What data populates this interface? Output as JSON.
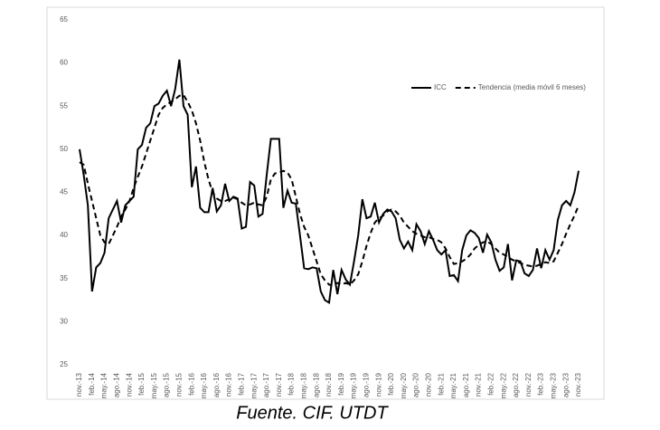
{
  "chart_data": {
    "type": "line",
    "caption": "Fuente. CIF. UTDT",
    "categories": [
      "nov.-13",
      null,
      null,
      "feb.-14",
      null,
      null,
      "may.-14",
      null,
      null,
      "ago.-14",
      null,
      null,
      "nov.-14",
      null,
      null,
      "feb.-15",
      null,
      null,
      "may.-15",
      null,
      null,
      "ago.-15",
      null,
      null,
      "nov.-15",
      null,
      null,
      "feb.-16",
      null,
      null,
      "may.-16",
      null,
      null,
      "ago.-16",
      null,
      null,
      "nov.-16",
      null,
      null,
      "feb.-17",
      null,
      null,
      "may.-17",
      null,
      null,
      "ago.-17",
      null,
      null,
      "nov.-17",
      null,
      null,
      "feb.-18",
      null,
      null,
      "may.-18",
      null,
      null,
      "ago.-18",
      null,
      null,
      "nov.-18",
      null,
      null,
      "feb.-19",
      null,
      null,
      "may.-19",
      null,
      null,
      "ago.-19",
      null,
      null,
      "nov.-19",
      null,
      null,
      "feb.-20",
      null,
      null,
      "may.-20",
      null,
      null,
      "ago.-20",
      null,
      null,
      "nov.-20",
      null,
      null,
      "feb.-21",
      null,
      null,
      "may.-21",
      null,
      null,
      "ago.-21",
      null,
      null,
      "nov.-21",
      null,
      null,
      "feb.-22",
      null,
      null,
      "may.-22",
      null,
      null,
      "ago.-22",
      null,
      null,
      "nov.-22",
      null,
      null,
      "feb.-23",
      null,
      null,
      "may.-23",
      null,
      null,
      "ago.-23",
      null,
      null,
      "nov.-23"
    ],
    "series": [
      {
        "name": "ICC",
        "color": "#000000",
        "dash": false,
        "values": [
          50,
          47,
          43.5,
          33.5,
          36.3,
          36.8,
          38,
          42,
          43,
          44,
          41.5,
          43.5,
          44,
          44.5,
          50,
          50.5,
          52.5,
          53,
          55,
          55.3,
          56.2,
          56.8,
          55,
          57,
          60.4,
          55,
          54,
          45.6,
          48,
          43.2,
          42.7,
          42.7,
          45.5,
          42.8,
          43.5,
          46,
          44,
          44.5,
          44.3,
          40.8,
          41,
          46.2,
          45.8,
          42.2,
          42.5,
          47,
          51.2,
          51.2,
          51.2,
          43.2,
          45.2,
          43.8,
          43.7,
          40,
          36.2,
          36.1,
          36.3,
          36.2,
          33.5,
          32.5,
          32.2,
          36,
          33.2,
          36,
          34.9,
          34.3,
          37,
          40,
          44.2,
          42,
          42.2,
          43.8,
          41.5,
          42.5,
          43,
          42.8,
          42,
          39.5,
          38.5,
          39.3,
          38.3,
          41.3,
          40.5,
          39,
          40.5,
          39.5,
          38.3,
          37.8,
          38.3,
          35.3,
          35.4,
          34.7,
          38.3,
          40,
          40.6,
          40.3,
          39.7,
          38,
          40.1,
          39.2,
          37.2,
          35.9,
          36.3,
          39,
          34.8,
          37.1,
          37,
          35.6,
          35.3,
          36,
          38.5,
          36.2,
          38.3,
          37.2,
          38.3,
          41.8,
          43.5,
          44,
          43.5,
          45,
          47.5
        ]
      },
      {
        "name": "Tendencia (media móvil 6 meses)",
        "color": "#000000",
        "dash": true,
        "values": [
          48.5,
          48.2,
          46,
          44,
          42,
          40,
          39.2,
          39,
          40,
          41,
          42.2,
          43,
          44,
          45.5,
          46.8,
          48,
          49.5,
          51,
          52.5,
          54,
          54.8,
          55.2,
          55.5,
          55.8,
          56.2,
          56.3,
          55.5,
          54.5,
          53,
          51,
          48.5,
          46.5,
          45,
          44.3,
          44,
          44,
          44.2,
          44.4,
          44.2,
          43.8,
          43.5,
          43.6,
          43.8,
          43.6,
          43.5,
          44.5,
          46.5,
          47.2,
          47.3,
          47.5,
          47.3,
          46.5,
          44.5,
          42.5,
          41,
          40,
          38.5,
          37,
          35.5,
          34.8,
          34.3,
          34.2,
          34.5,
          34.3,
          34.5,
          34.3,
          34.8,
          35.5,
          37,
          38.8,
          40.3,
          41.5,
          42,
          42.3,
          42.8,
          43,
          42.8,
          42.3,
          41.5,
          41,
          40.5,
          40.2,
          40,
          39.8,
          39.8,
          39.6,
          39.5,
          39.2,
          38.5,
          37.5,
          36.7,
          36.8,
          37,
          37.3,
          37.8,
          38.5,
          38.9,
          39.2,
          39.3,
          39,
          38.5,
          38,
          37.8,
          37.5,
          37.2,
          37,
          36.8,
          36.6,
          36.5,
          36.4,
          36.5,
          36.7,
          36.9,
          36.8,
          37,
          38,
          39,
          40.2,
          41.3,
          42.3,
          43.5
        ]
      }
    ],
    "ylim": [
      25,
      65
    ],
    "yticks": [
      25,
      30,
      35,
      40,
      45,
      50,
      55,
      60,
      65
    ],
    "grid": false,
    "legend": "top-right"
  }
}
